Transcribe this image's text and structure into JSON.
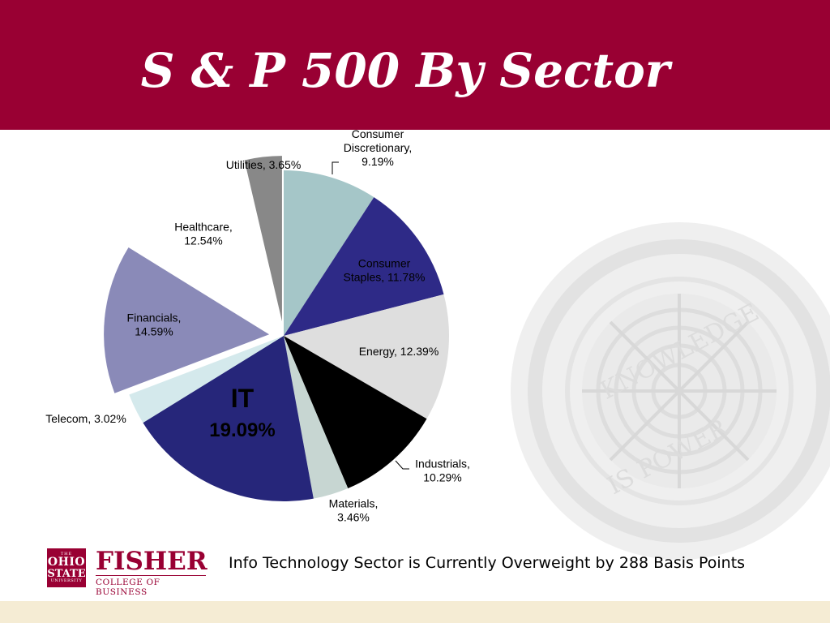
{
  "slide": {
    "title": "S & P 500 By Sector",
    "footnote": "Info Technology Sector is Currently Overweight by 288 Basis Points",
    "colors": {
      "title_bar": "#990033",
      "bottom_band": "#f5ecd4"
    }
  },
  "logo": {
    "line1": "THE",
    "line2": "OHIO",
    "line3": "STATE",
    "line4": "UNIVERSITY",
    "name": "FISHER",
    "subtitle": "COLLEGE OF BUSINESS"
  },
  "seal": {
    "icon": "university-seal-watermark",
    "text_top": "KNOWLEDGE",
    "text_bottom": "IS POWER"
  },
  "chart_data": {
    "type": "pie",
    "start": "top",
    "direction": "clockwise",
    "legend": "none",
    "slices": [
      {
        "label": "Consumer Discretionary",
        "value": 9.19,
        "display": "Consumer\nDiscretionary,\n9.19%",
        "color": "#a5c6c8"
      },
      {
        "label": "Consumer Staples",
        "value": 11.78,
        "display": "Consumer\nStaples, 11.78%",
        "color": "#2e2a87"
      },
      {
        "label": "Energy",
        "value": 12.39,
        "display": "Energy, 12.39%",
        "color": "#dedede"
      },
      {
        "label": "Industrials",
        "value": 10.29,
        "display": "Industrials,\n10.29%",
        "color": "#000000"
      },
      {
        "label": "Materials",
        "value": 3.46,
        "display": "Materials,\n3.46%",
        "color": "#c7d6d2"
      },
      {
        "label": "IT",
        "value": 19.09,
        "display": "IT\n19.09%",
        "color": "#26267a",
        "emphasis": true
      },
      {
        "label": "Telecom",
        "value": 3.02,
        "display": "Telecom, 3.02%",
        "color": "#d4e9ec"
      },
      {
        "label": "Financials",
        "value": 14.59,
        "display": "Financials,\n14.59%",
        "color": "#8a8ab8",
        "exploded": true
      },
      {
        "label": "Healthcare",
        "value": 12.54,
        "display": "Healthcare,\n12.54%",
        "color": "#ffffff",
        "exploded": true
      },
      {
        "label": "Utilities",
        "value": 3.65,
        "display": "Utilities, 3.65%",
        "color": "#888888",
        "exploded": true
      }
    ]
  }
}
